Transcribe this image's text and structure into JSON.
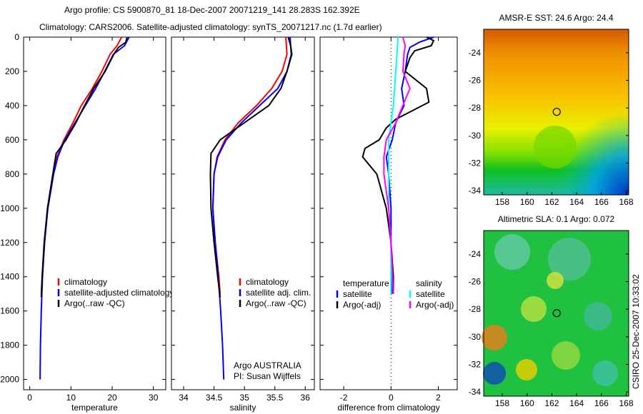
{
  "title_line1": "Argo profile: CS 5900870_81 18-Dec-2007 20071219_141 28.283S 162.392E",
  "title_line2": "Climatology: CARS2006. Satellite-adjusted climatology: synTS_20071217.nc (1.7d earlier)",
  "credit": "CSIRO 25-Dec-2007 10:33:02",
  "chart_data": [
    {
      "type": "line",
      "name": "temperature",
      "xlabel": "temperature",
      "ylabel": "",
      "xlim": [
        -1.5,
        33
      ],
      "ylim": [
        2060,
        0
      ],
      "xticks": [
        0,
        10,
        20,
        30
      ],
      "yticks": [
        0,
        200,
        400,
        600,
        800,
        1000,
        1200,
        1400,
        1600,
        1800,
        2000
      ],
      "legend": [
        "climatology",
        "satellite-adjusted climatology",
        "Argo(..raw -QC)"
      ],
      "series": [
        {
          "name": "climatology",
          "color": "#ff0000",
          "depth": [
            0,
            50,
            100,
            200,
            300,
            400,
            500,
            600,
            700,
            800,
            1000,
            1200,
            1400,
            1500
          ],
          "values": [
            22.3,
            21.2,
            19.5,
            17.5,
            15.2,
            12.5,
            10.5,
            8.3,
            6.6,
            5.6,
            4.3,
            3.6,
            3.0,
            2.8
          ]
        },
        {
          "name": "satellite-adjusted climatology",
          "color": "#0000ff",
          "depth": [
            0,
            50,
            100,
            200,
            300,
            400,
            500,
            600,
            700,
            800,
            1000,
            1200,
            1400,
            1600,
            1800,
            2000
          ],
          "values": [
            24.1,
            23.0,
            20.3,
            18.2,
            16.0,
            13.5,
            11.0,
            8.5,
            6.8,
            5.8,
            4.4,
            3.6,
            3.1,
            2.8,
            2.6,
            2.5
          ]
        },
        {
          "name": "Argo(..raw -QC)",
          "color": "#000000",
          "depth": [
            0,
            30,
            60,
            100,
            200,
            300,
            400,
            500,
            550,
            600,
            680,
            800,
            1000,
            1200,
            1400,
            1520
          ],
          "values": [
            23.6,
            23.3,
            21.5,
            20.4,
            18.3,
            15.5,
            13.3,
            11.2,
            10.0,
            8.8,
            6.4,
            5.6,
            4.3,
            3.5,
            3.0,
            2.8
          ]
        }
      ]
    },
    {
      "type": "line",
      "name": "salinity",
      "xlabel": "salinity",
      "xlim": [
        33.8,
        36.15
      ],
      "ylim": [
        2060,
        0
      ],
      "xticks": [
        34,
        34.5,
        35,
        35.5,
        36
      ],
      "legend": [
        "climatology",
        "satellite adj. clim.",
        "Argo(..raw -QC)"
      ],
      "annotation": [
        "Argo AUSTRALIA",
        "PI: Susan Wijffels"
      ],
      "series": [
        {
          "name": "climatology",
          "color": "#ff0000",
          "depth": [
            0,
            100,
            200,
            300,
            400,
            500,
            600,
            700,
            800,
            1000,
            1200,
            1400,
            1500
          ],
          "values": [
            35.68,
            35.7,
            35.62,
            35.45,
            35.2,
            34.9,
            34.68,
            34.55,
            34.5,
            34.48,
            34.52,
            34.58,
            34.6
          ]
        },
        {
          "name": "satellite adj. clim.",
          "color": "#0000ff",
          "depth": [
            0,
            100,
            200,
            300,
            400,
            500,
            600,
            700,
            800,
            1000,
            1200,
            1400,
            1600,
            1800,
            2000
          ],
          "values": [
            35.75,
            35.77,
            35.7,
            35.55,
            35.25,
            34.95,
            34.7,
            34.56,
            34.5,
            34.48,
            34.52,
            34.57,
            34.61,
            34.64,
            34.66
          ]
        },
        {
          "name": "Argo(..raw -QC)",
          "color": "#000000",
          "depth": [
            0,
            50,
            100,
            200,
            300,
            400,
            450,
            500,
            550,
            600,
            680,
            800,
            1000,
            1200,
            1400,
            1520
          ],
          "values": [
            35.72,
            35.76,
            35.78,
            35.7,
            35.6,
            35.4,
            35.2,
            35.0,
            34.8,
            34.6,
            34.45,
            34.44,
            34.45,
            34.5,
            34.56,
            34.6
          ]
        }
      ]
    },
    {
      "type": "line",
      "name": "difference",
      "xlabel": "difference from climatology",
      "xlim": [
        -3,
        2.8
      ],
      "ylim": [
        2060,
        0
      ],
      "xticks": [
        -2,
        0,
        2
      ],
      "legend_temperature_title": "temperature",
      "legend_salinity_title": "salinity",
      "legend": [
        "satellite",
        "Argo(-adj)",
        "satellite",
        "Argo(-adj)"
      ],
      "series": [
        {
          "name": "temperature satellite",
          "color": "#0000ff",
          "depth": [
            0,
            30,
            60,
            100,
            200,
            300,
            400,
            500,
            600,
            700,
            800,
            1000,
            1200,
            1500
          ],
          "values": [
            1.8,
            1.2,
            0.8,
            0.7,
            0.6,
            0.45,
            0.55,
            0.2,
            0.05,
            -0.2,
            -0.1,
            0.0,
            0.0,
            0.05
          ]
        },
        {
          "name": "temperature Argo(-adj)",
          "color": "#000000",
          "depth": [
            0,
            20,
            50,
            80,
            120,
            200,
            300,
            380,
            430,
            480,
            530,
            600,
            650,
            700,
            750,
            800,
            900,
            1000,
            1200,
            1400,
            1500
          ],
          "values": [
            1.5,
            1.8,
            1.7,
            1.0,
            0.8,
            0.6,
            1.5,
            1.6,
            0.9,
            0.2,
            -0.2,
            -0.5,
            -1.1,
            -1.2,
            -0.9,
            -0.6,
            -0.4,
            -0.2,
            0.0,
            0.1,
            0.1
          ]
        },
        {
          "name": "salinity satellite",
          "color": "#00ffff",
          "depth": [
            0,
            100,
            200,
            300,
            400,
            500,
            600,
            700,
            800,
            1000,
            1200,
            1500
          ],
          "values": [
            0.3,
            0.25,
            0.2,
            0.15,
            0.1,
            0.0,
            -0.1,
            -0.1,
            -0.1,
            -0.1,
            0.0,
            0.0
          ]
        },
        {
          "name": "salinity Argo(-adj)",
          "color": "#ff00ff",
          "depth": [
            0,
            50,
            100,
            200,
            300,
            400,
            500,
            600,
            700,
            800,
            1000,
            1200,
            1500
          ],
          "values": [
            0.5,
            0.6,
            0.55,
            0.5,
            0.8,
            0.5,
            0.2,
            -0.2,
            -0.3,
            -0.3,
            -0.1,
            0.0,
            0.1
          ]
        }
      ]
    },
    {
      "type": "heatmap",
      "name": "sst_map",
      "title": "AMSR-E SST: 24.6 Argo: 24.4",
      "xticks": [
        158,
        160,
        162,
        164,
        166,
        168
      ],
      "yticks": [
        -24,
        -26,
        -28,
        -30,
        -32,
        -34
      ],
      "xlim": [
        156.5,
        168.2
      ],
      "ylim": [
        -34.3,
        -22.3
      ],
      "argo_position": [
        162.392,
        -28.283
      ]
    },
    {
      "type": "heatmap",
      "name": "sla_map",
      "title": "Altimetric SLA: 0.1 Argo: 0.072",
      "xticks": [
        158,
        160,
        162,
        164,
        166,
        168
      ],
      "yticks": [
        -24,
        -26,
        -28,
        -30,
        -32,
        -34
      ],
      "xlim": [
        156.5,
        168.2
      ],
      "ylim": [
        -34.3,
        -22.3
      ],
      "argo_position": [
        162.392,
        -28.283
      ]
    }
  ]
}
